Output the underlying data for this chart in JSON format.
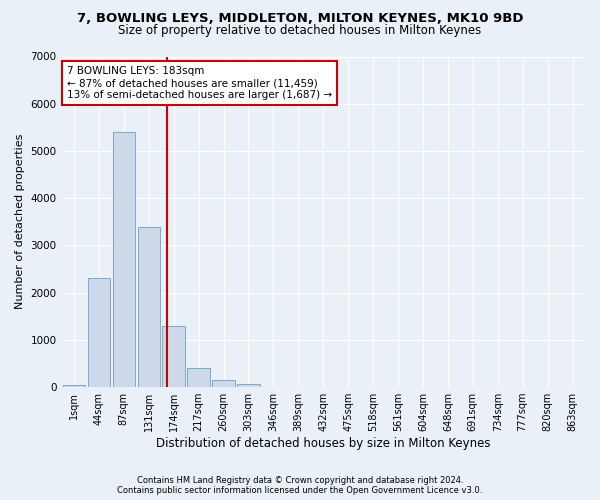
{
  "title1": "7, BOWLING LEYS, MIDDLETON, MILTON KEYNES, MK10 9BD",
  "title2": "Size of property relative to detached houses in Milton Keynes",
  "xlabel": "Distribution of detached houses by size in Milton Keynes",
  "ylabel": "Number of detached properties",
  "footnote1": "Contains HM Land Registry data © Crown copyright and database right 2024.",
  "footnote2": "Contains public sector information licensed under the Open Government Licence v3.0.",
  "bar_labels": [
    "1sqm",
    "44sqm",
    "87sqm",
    "131sqm",
    "174sqm",
    "217sqm",
    "260sqm",
    "303sqm",
    "346sqm",
    "389sqm",
    "432sqm",
    "475sqm",
    "518sqm",
    "561sqm",
    "604sqm",
    "648sqm",
    "691sqm",
    "734sqm",
    "777sqm",
    "820sqm",
    "863sqm"
  ],
  "bar_values": [
    50,
    2300,
    5400,
    3400,
    1300,
    400,
    140,
    60,
    5,
    0,
    0,
    0,
    0,
    0,
    0,
    0,
    0,
    0,
    0,
    0,
    0
  ],
  "bar_color": "#cdd8e8",
  "bar_edgecolor": "#6c9ec4",
  "vline_color": "#cc0000",
  "annotation_line1": "7 BOWLING LEYS: 183sqm",
  "annotation_line2": "← 87% of detached houses are smaller (11,459)",
  "annotation_line3": "13% of semi-detached houses are larger (1,687) →",
  "annotation_box_color": "#ffffff",
  "annotation_box_edgecolor": "#cc0000",
  "ylim": [
    0,
    7000
  ],
  "yticks": [
    0,
    1000,
    2000,
    3000,
    4000,
    5000,
    6000,
    7000
  ],
  "bg_color": "#eaf0f8",
  "plot_bg_color": "#eaf0f8",
  "grid_color": "#ffffff",
  "title1_fontsize": 9.5,
  "title2_fontsize": 8.5,
  "xlabel_fontsize": 8.5,
  "ylabel_fontsize": 8.0,
  "footnote_fontsize": 6.0
}
